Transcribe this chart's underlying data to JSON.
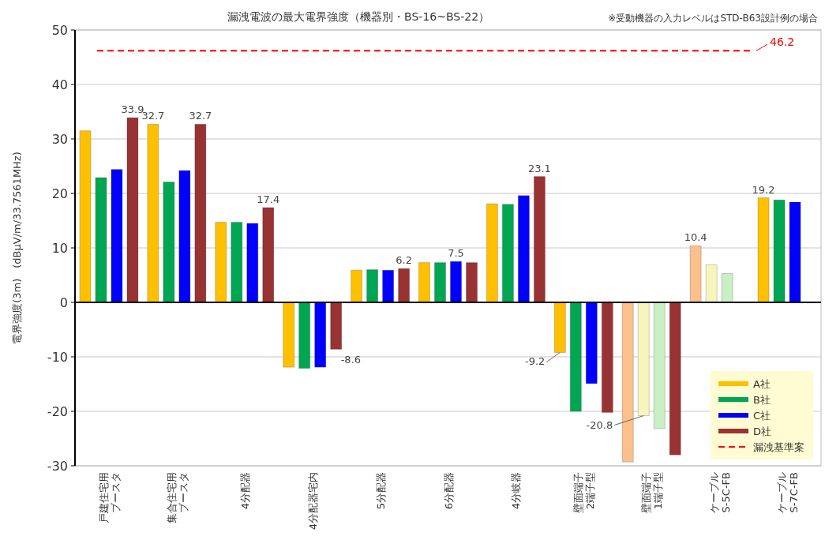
{
  "chart_data": {
    "type": "bar",
    "title": "漏洩電波の最大電界強度（機器別・BS-16~BS-22）",
    "ylabel": "電界強度(3m)　(dBμV/m/33.7561MHz)",
    "annotations": [
      "※受動機器の入力レベルはSTD-B63設計例の場合",
      "46.2"
    ],
    "categories": [
      "戸建住宅用ブースタ",
      "集合住宅用ブースタ",
      "4分配器",
      "4分配器宅内",
      "5分配器",
      "6分配器",
      "4分岐器",
      "壁面端子2端子型",
      "壁面端子1端子型",
      "ケーブルS-5C-FB",
      "ケーブルS-7C-FB"
    ],
    "series": [
      {
        "name": "A社",
        "color": "#ffc000",
        "colors": [
          "#ffc000",
          "#ffc000",
          "#ffc000",
          "#ffc000",
          "#ffc000",
          "#ffc000",
          "#ffc000",
          "#ffc000",
          "#fbc08c",
          "#fbc08c",
          "#ffc000"
        ],
        "values": [
          31.5,
          32.7,
          14.7,
          -11.9,
          5.9,
          7.3,
          18.1,
          -9.2,
          -29.3,
          10.4,
          19.2
        ],
        "value_labels": [
          null,
          "32.7",
          null,
          null,
          null,
          null,
          null,
          "-9.2",
          null,
          "10.4",
          "19.2"
        ]
      },
      {
        "name": "B社",
        "color": "#00a651",
        "colors": [
          "#00a651",
          "#00a651",
          "#00a651",
          "#00a651",
          "#00a651",
          "#00a651",
          "#00a651",
          "#00a651",
          "#f6f6bc",
          "#f6f6bc",
          "#00a651"
        ],
        "values": [
          22.9,
          22.1,
          14.7,
          -12.1,
          6.0,
          7.3,
          18.0,
          -20.0,
          -20.8,
          6.9,
          18.8
        ],
        "value_labels": [
          null,
          null,
          null,
          null,
          null,
          null,
          null,
          null,
          "-20.8",
          null,
          null
        ]
      },
      {
        "name": "C社",
        "color": "#0000ff",
        "colors": [
          "#0000ff",
          "#0000ff",
          "#0000ff",
          "#0000ff",
          "#0000ff",
          "#0000ff",
          "#0000ff",
          "#0000ff",
          "#c8f0c4",
          "#c8f0c4",
          "#0000ff"
        ],
        "values": [
          24.4,
          24.2,
          14.5,
          -11.9,
          5.9,
          7.5,
          19.6,
          -14.9,
          -23.2,
          5.3,
          18.4
        ],
        "value_labels": [
          null,
          null,
          null,
          null,
          null,
          "7.5",
          null,
          null,
          null,
          null,
          null
        ]
      },
      {
        "name": "D社",
        "color": "#993333",
        "values": [
          33.9,
          32.7,
          17.4,
          -8.6,
          6.2,
          7.3,
          23.1,
          -20.2,
          -28.0,
          null,
          null
        ],
        "value_labels": [
          "33.9",
          "32.7",
          "17.4",
          "-8.6",
          "6.2",
          null,
          "23.1",
          null,
          null,
          null,
          null
        ]
      }
    ],
    "ref_lines": [
      {
        "axis": "y",
        "value": 46.2,
        "label": "漏洩基準案",
        "color": "#ff0000",
        "line_style": "dashed"
      }
    ],
    "ylim": [
      -30,
      50
    ],
    "yticks": [
      -30,
      -20,
      -10,
      0,
      10,
      20,
      30,
      40,
      50
    ],
    "grid": "y",
    "legend": "bottom right"
  }
}
